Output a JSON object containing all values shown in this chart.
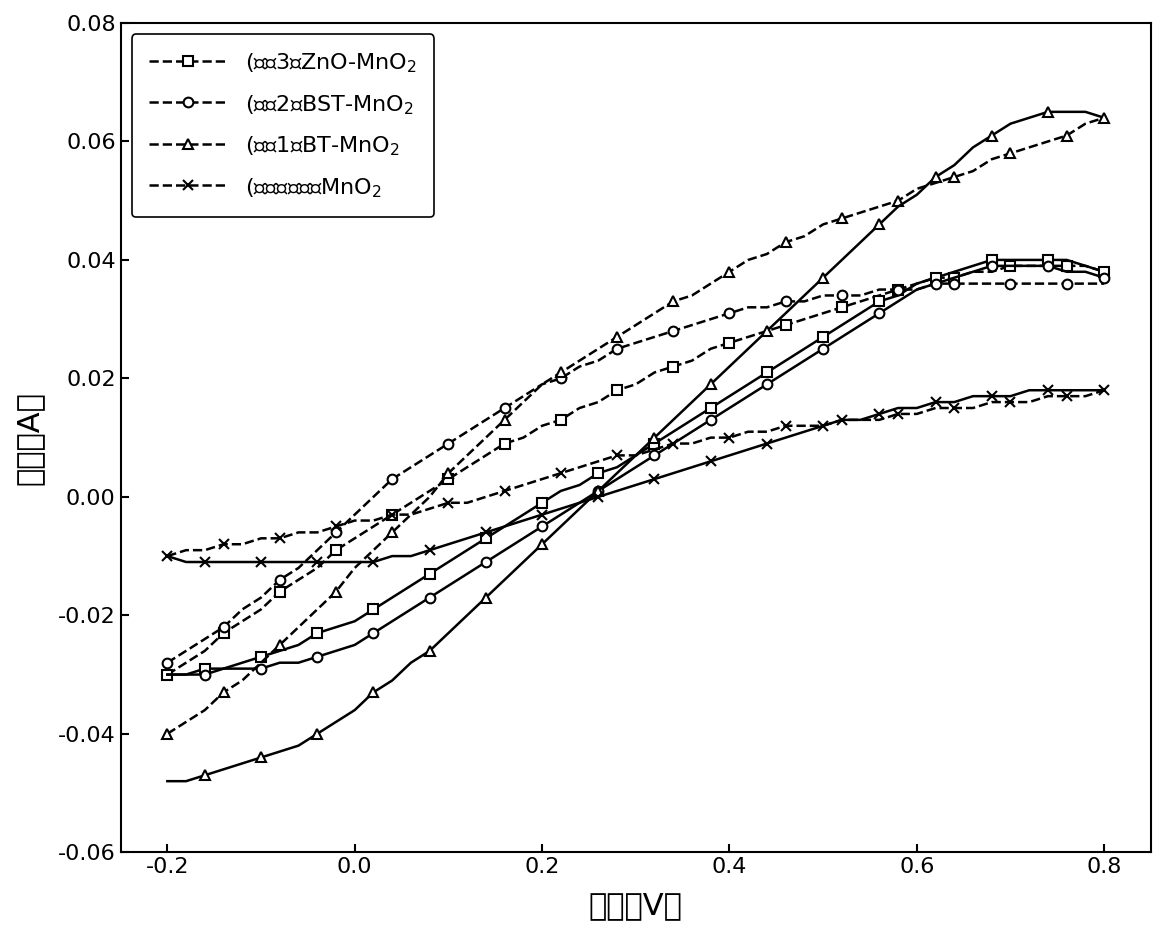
{
  "title": "",
  "xlabel": "电压（V）",
  "ylabel": "电流（A）",
  "xlim": [
    -0.25,
    0.85
  ],
  "ylim": [
    -0.06,
    0.08
  ],
  "xticks": [
    -0.2,
    0.0,
    0.2,
    0.4,
    0.6,
    0.8
  ],
  "yticks": [
    -0.06,
    -0.04,
    -0.02,
    0.0,
    0.02,
    0.04,
    0.06,
    0.08
  ],
  "legend_entries": [
    "(　例3）ZnO-MnO$_2$",
    "(　例2）BST-MnO$_2$",
    "(　例1）BT-MnO$_2$",
    "(　对比　例）MnO$_2$"
  ],
  "markers": [
    "s",
    "o",
    "^",
    "x"
  ],
  "background_color": "#ffffff",
  "line_color": "#000000",
  "xlabel_fontsize": 22,
  "ylabel_fontsize": 22,
  "tick_fontsize": 16,
  "legend_fontsize": 16,
  "zno_mno2_forward_x": [
    -0.2,
    -0.18,
    -0.16,
    -0.14,
    -0.12,
    -0.1,
    -0.08,
    -0.06,
    -0.04,
    -0.02,
    0.0,
    0.02,
    0.04,
    0.06,
    0.08,
    0.1,
    0.12,
    0.14,
    0.16,
    0.18,
    0.2,
    0.22,
    0.24,
    0.26,
    0.28,
    0.3,
    0.32,
    0.34,
    0.36,
    0.38,
    0.4,
    0.42,
    0.44,
    0.46,
    0.48,
    0.5,
    0.52,
    0.54,
    0.56,
    0.58,
    0.6,
    0.62,
    0.64,
    0.66,
    0.68,
    0.7,
    0.72,
    0.74,
    0.76,
    0.78,
    0.8
  ],
  "zno_mno2_forward_y": [
    -0.03,
    -0.028,
    -0.026,
    -0.023,
    -0.021,
    -0.019,
    -0.016,
    -0.014,
    -0.012,
    -0.009,
    -0.007,
    -0.005,
    -0.003,
    -0.001,
    0.001,
    0.003,
    0.005,
    0.007,
    0.009,
    0.01,
    0.012,
    0.013,
    0.015,
    0.016,
    0.018,
    0.019,
    0.021,
    0.022,
    0.023,
    0.025,
    0.026,
    0.027,
    0.028,
    0.029,
    0.03,
    0.031,
    0.032,
    0.033,
    0.034,
    0.035,
    0.036,
    0.037,
    0.037,
    0.038,
    0.038,
    0.039,
    0.039,
    0.039,
    0.039,
    0.039,
    0.038
  ],
  "zno_mno2_reverse_x": [
    0.8,
    0.78,
    0.76,
    0.74,
    0.72,
    0.7,
    0.68,
    0.66,
    0.64,
    0.62,
    0.6,
    0.58,
    0.56,
    0.54,
    0.52,
    0.5,
    0.48,
    0.46,
    0.44,
    0.42,
    0.4,
    0.38,
    0.36,
    0.34,
    0.32,
    0.3,
    0.28,
    0.26,
    0.24,
    0.22,
    0.2,
    0.18,
    0.16,
    0.14,
    0.12,
    0.1,
    0.08,
    0.06,
    0.04,
    0.02,
    0.0,
    -0.02,
    -0.04,
    -0.06,
    -0.08,
    -0.1,
    -0.12,
    -0.14,
    -0.16,
    -0.18,
    -0.2
  ],
  "zno_mno2_reverse_y": [
    0.038,
    0.039,
    0.04,
    0.04,
    0.04,
    0.04,
    0.04,
    0.039,
    0.038,
    0.037,
    0.036,
    0.034,
    0.033,
    0.031,
    0.029,
    0.027,
    0.025,
    0.023,
    0.021,
    0.019,
    0.017,
    0.015,
    0.013,
    0.011,
    0.009,
    0.007,
    0.005,
    0.004,
    0.002,
    0.001,
    -0.001,
    -0.003,
    -0.005,
    -0.007,
    -0.009,
    -0.011,
    -0.013,
    -0.015,
    -0.017,
    -0.019,
    -0.021,
    -0.022,
    -0.023,
    -0.025,
    -0.026,
    -0.027,
    -0.028,
    -0.029,
    -0.029,
    -0.03,
    -0.03
  ],
  "bst_mno2_forward_x": [
    -0.2,
    -0.18,
    -0.16,
    -0.14,
    -0.12,
    -0.1,
    -0.08,
    -0.06,
    -0.04,
    -0.02,
    0.0,
    0.02,
    0.04,
    0.06,
    0.08,
    0.1,
    0.12,
    0.14,
    0.16,
    0.18,
    0.2,
    0.22,
    0.24,
    0.26,
    0.28,
    0.3,
    0.32,
    0.34,
    0.36,
    0.38,
    0.4,
    0.42,
    0.44,
    0.46,
    0.48,
    0.5,
    0.52,
    0.54,
    0.56,
    0.58,
    0.6,
    0.62,
    0.64,
    0.66,
    0.68,
    0.7,
    0.72,
    0.74,
    0.76,
    0.78,
    0.8
  ],
  "bst_mno2_forward_y": [
    -0.028,
    -0.026,
    -0.024,
    -0.022,
    -0.019,
    -0.017,
    -0.014,
    -0.012,
    -0.009,
    -0.006,
    -0.003,
    0.0,
    0.003,
    0.005,
    0.007,
    0.009,
    0.011,
    0.013,
    0.015,
    0.017,
    0.019,
    0.02,
    0.022,
    0.023,
    0.025,
    0.026,
    0.027,
    0.028,
    0.029,
    0.03,
    0.031,
    0.032,
    0.032,
    0.033,
    0.033,
    0.034,
    0.034,
    0.034,
    0.035,
    0.035,
    0.035,
    0.036,
    0.036,
    0.036,
    0.036,
    0.036,
    0.036,
    0.036,
    0.036,
    0.036,
    0.036
  ],
  "bst_mno2_reverse_x": [
    0.8,
    0.78,
    0.76,
    0.74,
    0.72,
    0.7,
    0.68,
    0.66,
    0.64,
    0.62,
    0.6,
    0.58,
    0.56,
    0.54,
    0.52,
    0.5,
    0.48,
    0.46,
    0.44,
    0.42,
    0.4,
    0.38,
    0.36,
    0.34,
    0.32,
    0.3,
    0.28,
    0.26,
    0.24,
    0.22,
    0.2,
    0.18,
    0.16,
    0.14,
    0.12,
    0.1,
    0.08,
    0.06,
    0.04,
    0.02,
    0.0,
    -0.02,
    -0.04,
    -0.06,
    -0.08,
    -0.1,
    -0.12,
    -0.14,
    -0.16,
    -0.18,
    -0.2
  ],
  "bst_mno2_reverse_y": [
    0.037,
    0.038,
    0.038,
    0.039,
    0.039,
    0.039,
    0.039,
    0.038,
    0.037,
    0.036,
    0.035,
    0.033,
    0.031,
    0.029,
    0.027,
    0.025,
    0.023,
    0.021,
    0.019,
    0.017,
    0.015,
    0.013,
    0.011,
    0.009,
    0.007,
    0.005,
    0.003,
    0.001,
    -0.001,
    -0.003,
    -0.005,
    -0.007,
    -0.009,
    -0.011,
    -0.013,
    -0.015,
    -0.017,
    -0.019,
    -0.021,
    -0.023,
    -0.025,
    -0.026,
    -0.027,
    -0.028,
    -0.028,
    -0.029,
    -0.029,
    -0.029,
    -0.03,
    -0.03,
    -0.03
  ],
  "bt_mno2_forward_x": [
    -0.2,
    -0.18,
    -0.16,
    -0.14,
    -0.12,
    -0.1,
    -0.08,
    -0.06,
    -0.04,
    -0.02,
    0.0,
    0.02,
    0.04,
    0.06,
    0.08,
    0.1,
    0.12,
    0.14,
    0.16,
    0.18,
    0.2,
    0.22,
    0.24,
    0.26,
    0.28,
    0.3,
    0.32,
    0.34,
    0.36,
    0.38,
    0.4,
    0.42,
    0.44,
    0.46,
    0.48,
    0.5,
    0.52,
    0.54,
    0.56,
    0.58,
    0.6,
    0.62,
    0.64,
    0.66,
    0.68,
    0.7,
    0.72,
    0.74,
    0.76,
    0.78,
    0.8
  ],
  "bt_mno2_forward_y": [
    -0.04,
    -0.038,
    -0.036,
    -0.033,
    -0.031,
    -0.028,
    -0.025,
    -0.022,
    -0.019,
    -0.016,
    -0.012,
    -0.009,
    -0.006,
    -0.003,
    0.0,
    0.004,
    0.007,
    0.01,
    0.013,
    0.016,
    0.019,
    0.021,
    0.023,
    0.025,
    0.027,
    0.029,
    0.031,
    0.033,
    0.034,
    0.036,
    0.038,
    0.04,
    0.041,
    0.043,
    0.044,
    0.046,
    0.047,
    0.048,
    0.049,
    0.05,
    0.052,
    0.053,
    0.054,
    0.055,
    0.057,
    0.058,
    0.059,
    0.06,
    0.061,
    0.063,
    0.064
  ],
  "bt_mno2_reverse_x": [
    0.8,
    0.78,
    0.76,
    0.74,
    0.72,
    0.7,
    0.68,
    0.66,
    0.64,
    0.62,
    0.6,
    0.58,
    0.56,
    0.54,
    0.52,
    0.5,
    0.48,
    0.46,
    0.44,
    0.42,
    0.4,
    0.38,
    0.36,
    0.34,
    0.32,
    0.3,
    0.28,
    0.26,
    0.24,
    0.22,
    0.2,
    0.18,
    0.16,
    0.14,
    0.12,
    0.1,
    0.08,
    0.06,
    0.04,
    0.02,
    0.0,
    -0.02,
    -0.04,
    -0.06,
    -0.08,
    -0.1,
    -0.12,
    -0.14,
    -0.16,
    -0.18,
    -0.2
  ],
  "bt_mno2_reverse_y": [
    0.064,
    0.065,
    0.065,
    0.065,
    0.064,
    0.063,
    0.061,
    0.059,
    0.056,
    0.054,
    0.051,
    0.049,
    0.046,
    0.043,
    0.04,
    0.037,
    0.034,
    0.031,
    0.028,
    0.025,
    0.022,
    0.019,
    0.016,
    0.013,
    0.01,
    0.007,
    0.004,
    0.001,
    -0.002,
    -0.005,
    -0.008,
    -0.011,
    -0.014,
    -0.017,
    -0.02,
    -0.023,
    -0.026,
    -0.028,
    -0.031,
    -0.033,
    -0.036,
    -0.038,
    -0.04,
    -0.042,
    -0.043,
    -0.044,
    -0.045,
    -0.046,
    -0.047,
    -0.048,
    -0.048
  ],
  "mno2_forward_x": [
    -0.2,
    -0.18,
    -0.16,
    -0.14,
    -0.12,
    -0.1,
    -0.08,
    -0.06,
    -0.04,
    -0.02,
    0.0,
    0.02,
    0.04,
    0.06,
    0.08,
    0.1,
    0.12,
    0.14,
    0.16,
    0.18,
    0.2,
    0.22,
    0.24,
    0.26,
    0.28,
    0.3,
    0.32,
    0.34,
    0.36,
    0.38,
    0.4,
    0.42,
    0.44,
    0.46,
    0.48,
    0.5,
    0.52,
    0.54,
    0.56,
    0.58,
    0.6,
    0.62,
    0.64,
    0.66,
    0.68,
    0.7,
    0.72,
    0.74,
    0.76,
    0.78,
    0.8
  ],
  "mno2_forward_y": [
    -0.01,
    -0.009,
    -0.009,
    -0.008,
    -0.008,
    -0.007,
    -0.007,
    -0.006,
    -0.006,
    -0.005,
    -0.004,
    -0.004,
    -0.003,
    -0.003,
    -0.002,
    -0.001,
    -0.001,
    0.0,
    0.001,
    0.002,
    0.003,
    0.004,
    0.005,
    0.006,
    0.007,
    0.007,
    0.008,
    0.009,
    0.009,
    0.01,
    0.01,
    0.011,
    0.011,
    0.012,
    0.012,
    0.012,
    0.013,
    0.013,
    0.013,
    0.014,
    0.014,
    0.015,
    0.015,
    0.015,
    0.016,
    0.016,
    0.016,
    0.017,
    0.017,
    0.017,
    0.018
  ],
  "mno2_reverse_x": [
    0.8,
    0.78,
    0.76,
    0.74,
    0.72,
    0.7,
    0.68,
    0.66,
    0.64,
    0.62,
    0.6,
    0.58,
    0.56,
    0.54,
    0.52,
    0.5,
    0.48,
    0.46,
    0.44,
    0.42,
    0.4,
    0.38,
    0.36,
    0.34,
    0.32,
    0.3,
    0.28,
    0.26,
    0.24,
    0.22,
    0.2,
    0.18,
    0.16,
    0.14,
    0.12,
    0.1,
    0.08,
    0.06,
    0.04,
    0.02,
    0.0,
    -0.02,
    -0.04,
    -0.06,
    -0.08,
    -0.1,
    -0.12,
    -0.14,
    -0.16,
    -0.18,
    -0.2
  ],
  "mno2_reverse_y": [
    0.018,
    0.018,
    0.018,
    0.018,
    0.018,
    0.017,
    0.017,
    0.017,
    0.016,
    0.016,
    0.015,
    0.015,
    0.014,
    0.013,
    0.013,
    0.012,
    0.011,
    0.01,
    0.009,
    0.008,
    0.007,
    0.006,
    0.005,
    0.004,
    0.003,
    0.002,
    0.001,
    0.0,
    -0.001,
    -0.002,
    -0.003,
    -0.004,
    -0.005,
    -0.006,
    -0.007,
    -0.008,
    -0.009,
    -0.01,
    -0.01,
    -0.011,
    -0.011,
    -0.011,
    -0.011,
    -0.011,
    -0.011,
    -0.011,
    -0.011,
    -0.011,
    -0.011,
    -0.011,
    -0.01
  ]
}
